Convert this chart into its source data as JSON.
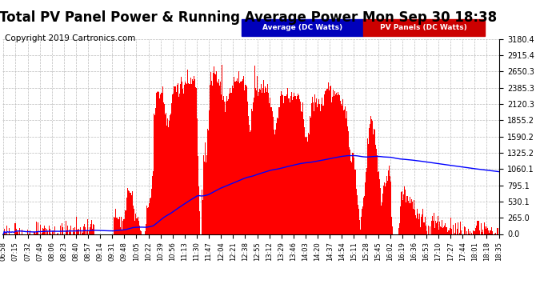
{
  "title": "Total PV Panel Power & Running Average Power Mon Sep 30 18:38",
  "copyright": "Copyright 2019 Cartronics.com",
  "ylabel_right_values": [
    0.0,
    265.0,
    530.1,
    795.1,
    1060.1,
    1325.2,
    1590.2,
    1855.2,
    2120.3,
    2385.3,
    2650.3,
    2915.4,
    3180.4
  ],
  "ymax": 3180.4,
  "ymin": 0.0,
  "bar_color": "#FF0000",
  "avg_color": "#0000FF",
  "background_color": "#FFFFFF",
  "grid_color": "#BBBBBB",
  "legend_avg_label": "Average (DC Watts)",
  "legend_pv_label": "PV Panels (DC Watts)",
  "legend_avg_bg": "#0000CC",
  "legend_pv_bg": "#CC0000",
  "title_fontsize": 12,
  "copyright_fontsize": 7.5,
  "time_labels": [
    "06:58",
    "07:15",
    "07:32",
    "07:49",
    "08:06",
    "08:23",
    "08:40",
    "08:57",
    "09:14",
    "09:31",
    "09:48",
    "10:05",
    "10:22",
    "10:39",
    "10:56",
    "11:13",
    "11:30",
    "11:47",
    "12:04",
    "12:21",
    "12:38",
    "12:55",
    "13:12",
    "13:29",
    "13:46",
    "14:03",
    "14:20",
    "14:37",
    "14:54",
    "15:11",
    "15:28",
    "15:45",
    "16:02",
    "16:19",
    "16:36",
    "16:53",
    "17:10",
    "17:27",
    "17:44",
    "18:01",
    "18:18",
    "18:35"
  ]
}
